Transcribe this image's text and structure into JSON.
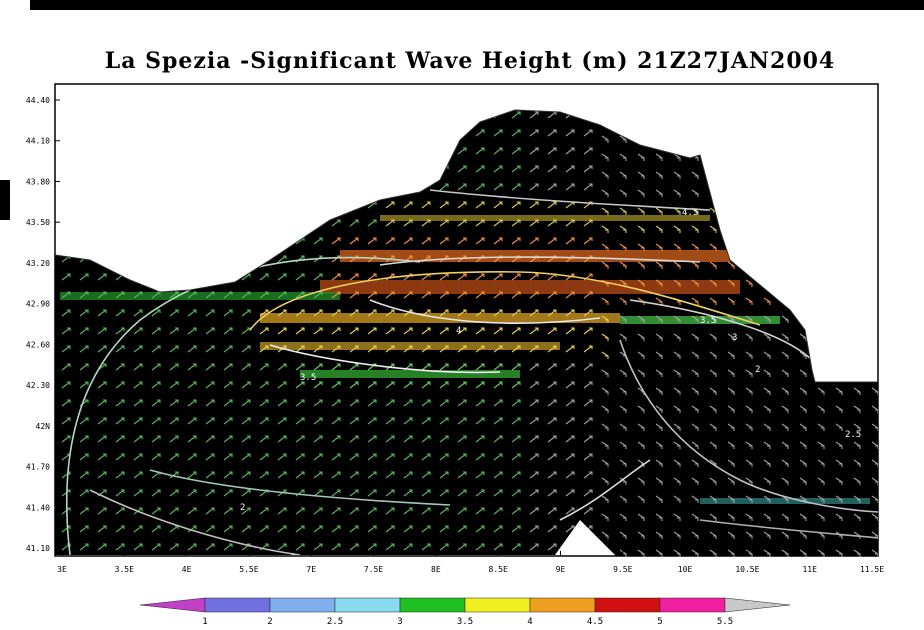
{
  "title": "La Spezia -Significant Wave Height (m) 21Z27JAN2004",
  "y_ticks": [
    "44.40",
    "44.10",
    "43.80",
    "43.50",
    "43.20",
    "42.90",
    "42.60",
    "42.30",
    "42N",
    "41.70",
    "41.40",
    "41.10"
  ],
  "x_ticks": [
    "3E",
    "3.5E",
    "4E",
    "5.5E",
    "7E",
    "7.5E",
    "8E",
    "8.5E",
    "9E",
    "9.5E",
    "10E",
    "10.5E",
    "11E",
    "11.5E"
  ],
  "colorbar": {
    "labels": [
      "1",
      "2",
      "2.5",
      "3",
      "3.5",
      "4",
      "4.5",
      "5",
      "5.5"
    ],
    "colors": [
      "#c040c8",
      "#7070e0",
      "#80b0ee",
      "#88dcee",
      "#20c020",
      "#f0f020",
      "#f0a020",
      "#d01010",
      "#f020a0",
      "#c8c8c8"
    ]
  },
  "contour_labels": [
    "4.5",
    "4",
    "3.5",
    "3.5",
    "3",
    "2.5",
    "2",
    "2",
    "1"
  ]
}
